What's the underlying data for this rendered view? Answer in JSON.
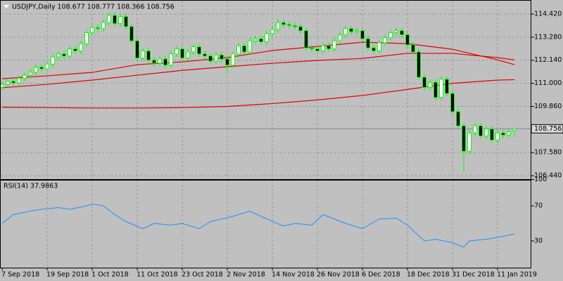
{
  "chart_data": [
    {
      "type": "candlestick",
      "title": "USDJPY,Daily 108.677 108.777 108.366 108.756",
      "categories": [
        "7 Sep 2018",
        null,
        null,
        null,
        null,
        null,
        null,
        null,
        "19 Sep 2018",
        null,
        null,
        null,
        null,
        null,
        null,
        null,
        "1 Oct 2018",
        null,
        null,
        null,
        null,
        null,
        null,
        null,
        "11 Oct 2018",
        null,
        null,
        null,
        null,
        null,
        null,
        null,
        "23 Oct 2018",
        null,
        null,
        null,
        null,
        null,
        null,
        null,
        "2 Nov 2018",
        null,
        null,
        null,
        null,
        null,
        null,
        null,
        "14 Nov 2018",
        null,
        null,
        null,
        null,
        null,
        null,
        null,
        "26 Nov 2018",
        null,
        null,
        null,
        null,
        null,
        null,
        null,
        "6 Dec 2018",
        null,
        null,
        null,
        null,
        null,
        null,
        null,
        "18 Dec 2018",
        null,
        null,
        null,
        null,
        null,
        null,
        null,
        "31 Dec 2018",
        null,
        null,
        null,
        null,
        null,
        null,
        null,
        "11 Jan 2019",
        null,
        null,
        null
      ],
      "open": [
        110.8,
        110.95,
        111.1,
        111.02,
        111.25,
        111.4,
        111.55,
        111.8,
        111.72,
        111.95,
        112.3,
        112.45,
        112.35,
        112.7,
        112.6,
        112.95,
        113.5,
        113.75,
        113.7,
        114.0,
        114.35,
        113.95,
        114.3,
        113.8,
        113.1,
        112.25,
        112.6,
        112.15,
        112.0,
        112.2,
        111.9,
        112.45,
        112.7,
        112.25,
        112.55,
        112.8,
        112.45,
        112.35,
        112.1,
        112.4,
        112.2,
        111.9,
        112.45,
        112.85,
        112.55,
        113.1,
        113.2,
        113.05,
        113.45,
        113.65,
        114.0,
        113.9,
        113.85,
        113.8,
        113.6,
        112.75,
        112.7,
        112.6,
        112.85,
        112.7,
        113.1,
        113.4,
        113.7,
        113.55,
        113.6,
        113.2,
        112.75,
        112.6,
        113.0,
        113.25,
        113.5,
        113.6,
        113.4,
        112.9,
        112.55,
        111.3,
        110.8,
        111.05,
        110.3,
        111.2,
        110.5,
        109.6,
        108.9,
        107.65,
        108.55,
        108.9,
        108.4,
        108.75,
        108.2,
        108.55,
        108.45,
        108.677
      ],
      "high": [
        111.1,
        111.25,
        111.25,
        111.4,
        111.55,
        111.7,
        111.95,
        111.95,
        112.1,
        112.45,
        112.6,
        112.6,
        112.85,
        112.85,
        113.1,
        113.65,
        113.9,
        113.9,
        114.15,
        114.5,
        114.5,
        114.45,
        114.45,
        113.95,
        113.25,
        112.75,
        112.75,
        112.3,
        112.35,
        112.35,
        112.6,
        112.85,
        112.85,
        112.7,
        112.95,
        112.95,
        112.6,
        112.5,
        112.55,
        112.55,
        112.35,
        112.6,
        113.0,
        113.0,
        113.25,
        113.35,
        113.35,
        113.6,
        113.8,
        114.15,
        114.15,
        114.05,
        114.0,
        113.95,
        113.75,
        112.9,
        112.85,
        113.0,
        113.0,
        113.25,
        113.55,
        113.85,
        113.85,
        113.75,
        113.75,
        113.35,
        112.9,
        113.15,
        113.4,
        113.65,
        113.75,
        113.75,
        113.55,
        113.05,
        112.7,
        111.45,
        111.2,
        111.2,
        111.35,
        111.35,
        110.65,
        109.75,
        109.05,
        108.7,
        109.05,
        109.05,
        108.9,
        108.9,
        108.7,
        108.7,
        108.75,
        108.777
      ],
      "low": [
        110.65,
        110.8,
        110.87,
        110.87,
        111.1,
        111.25,
        111.4,
        111.57,
        111.57,
        111.8,
        112.15,
        112.2,
        112.2,
        112.45,
        112.45,
        112.8,
        113.35,
        113.55,
        113.55,
        113.85,
        113.8,
        113.8,
        113.65,
        112.95,
        112.1,
        112.1,
        112.0,
        111.85,
        111.85,
        111.75,
        111.75,
        112.3,
        112.1,
        112.1,
        112.4,
        112.3,
        112.2,
        111.95,
        111.95,
        112.05,
        111.45,
        111.75,
        112.3,
        112.4,
        112.4,
        112.95,
        112.9,
        112.9,
        113.3,
        113.5,
        113.75,
        113.7,
        113.65,
        113.45,
        112.6,
        112.55,
        112.45,
        112.45,
        112.55,
        112.55,
        112.95,
        113.25,
        113.4,
        113.4,
        113.05,
        112.6,
        112.45,
        112.45,
        112.85,
        113.1,
        113.35,
        113.25,
        112.75,
        112.4,
        111.15,
        110.65,
        110.65,
        110.15,
        110.15,
        110.35,
        109.45,
        108.75,
        106.63,
        107.5,
        108.4,
        108.25,
        108.25,
        108.05,
        108.05,
        108.3,
        108.3,
        108.366
      ],
      "close": [
        110.95,
        111.1,
        111.02,
        111.25,
        111.4,
        111.55,
        111.8,
        111.72,
        111.95,
        112.3,
        112.45,
        112.35,
        112.7,
        112.6,
        112.95,
        113.5,
        113.75,
        113.7,
        114.0,
        114.35,
        113.95,
        114.3,
        113.8,
        113.1,
        112.25,
        112.6,
        112.15,
        112.0,
        112.2,
        111.9,
        112.45,
        112.7,
        112.25,
        112.55,
        112.8,
        112.45,
        112.35,
        112.1,
        112.4,
        112.2,
        111.9,
        112.45,
        112.85,
        112.55,
        113.1,
        113.2,
        113.05,
        113.45,
        113.65,
        114.0,
        113.9,
        113.85,
        113.8,
        113.6,
        112.75,
        112.7,
        112.6,
        112.85,
        112.7,
        113.1,
        113.4,
        113.7,
        113.55,
        113.6,
        113.2,
        112.75,
        112.6,
        113.0,
        113.25,
        113.5,
        113.6,
        113.4,
        112.9,
        112.55,
        111.3,
        110.8,
        111.05,
        110.3,
        111.2,
        110.5,
        109.6,
        108.9,
        107.65,
        108.55,
        108.9,
        108.4,
        108.75,
        108.2,
        108.55,
        108.45,
        108.6,
        108.756
      ],
      "up_color": "#ffffff",
      "down_color": "#000000",
      "wick_color": "#00ff00",
      "overlays": [
        {
          "color": "#e00000",
          "x": [
            0,
            8,
            16,
            24,
            32,
            40,
            48,
            56,
            64,
            72,
            80,
            88,
            91
          ],
          "values": [
            111.23,
            111.37,
            111.54,
            111.92,
            112.06,
            112.27,
            112.62,
            112.82,
            113.03,
            112.96,
            112.68,
            112.16,
            111.92
          ]
        },
        {
          "color": "#e00000",
          "x": [
            0,
            8,
            16,
            24,
            32,
            40,
            48,
            56,
            64,
            72,
            80,
            88,
            91
          ],
          "values": [
            110.78,
            110.95,
            111.16,
            111.4,
            111.64,
            111.82,
            111.99,
            112.13,
            112.23,
            112.48,
            112.48,
            112.27,
            112.16
          ]
        },
        {
          "color": "#e00000",
          "x": [
            0,
            8,
            16,
            24,
            32,
            40,
            48,
            56,
            64,
            72,
            80,
            88,
            91
          ],
          "values": [
            109.82,
            109.8,
            109.78,
            109.78,
            109.8,
            109.86,
            110.0,
            110.18,
            110.4,
            110.7,
            111.0,
            111.16,
            111.18
          ]
        }
      ],
      "last_price": 108.756,
      "ylim": [
        106.27,
        114.94
      ],
      "yticks": [
        {
          "value": 114.42,
          "label": "114.420"
        },
        {
          "value": 113.28,
          "label": "113.280"
        },
        {
          "value": 112.14,
          "label": "112.140"
        },
        {
          "value": 111.0,
          "label": "111.000"
        },
        {
          "value": 109.86,
          "label": "109.860"
        },
        {
          "value": 107.58,
          "label": "107.580"
        },
        {
          "value": 106.44,
          "label": "106.440"
        }
      ],
      "grid": true
    },
    {
      "type": "line",
      "title": "RSI(14) 37.9863",
      "x": [
        0,
        2,
        5,
        7,
        10,
        12,
        15,
        16,
        18,
        20,
        22,
        25,
        27,
        30,
        32,
        35,
        37,
        41,
        44,
        47,
        50,
        52,
        55,
        57,
        61,
        64,
        67,
        70,
        72,
        75,
        77,
        80,
        82,
        83,
        86,
        88,
        91
      ],
      "values": [
        50,
        60,
        64,
        66,
        68,
        66,
        70,
        72,
        70,
        60,
        52,
        44,
        50,
        48,
        50,
        44,
        52,
        58,
        64,
        55,
        47,
        50,
        48,
        60,
        50,
        44,
        55,
        56,
        48,
        30,
        32,
        28,
        23,
        30,
        32,
        34,
        37.9863
      ],
      "color": "#1e90ff",
      "ylim": [
        0,
        100
      ],
      "yticks": [
        100,
        70,
        30
      ],
      "grid": true
    }
  ]
}
